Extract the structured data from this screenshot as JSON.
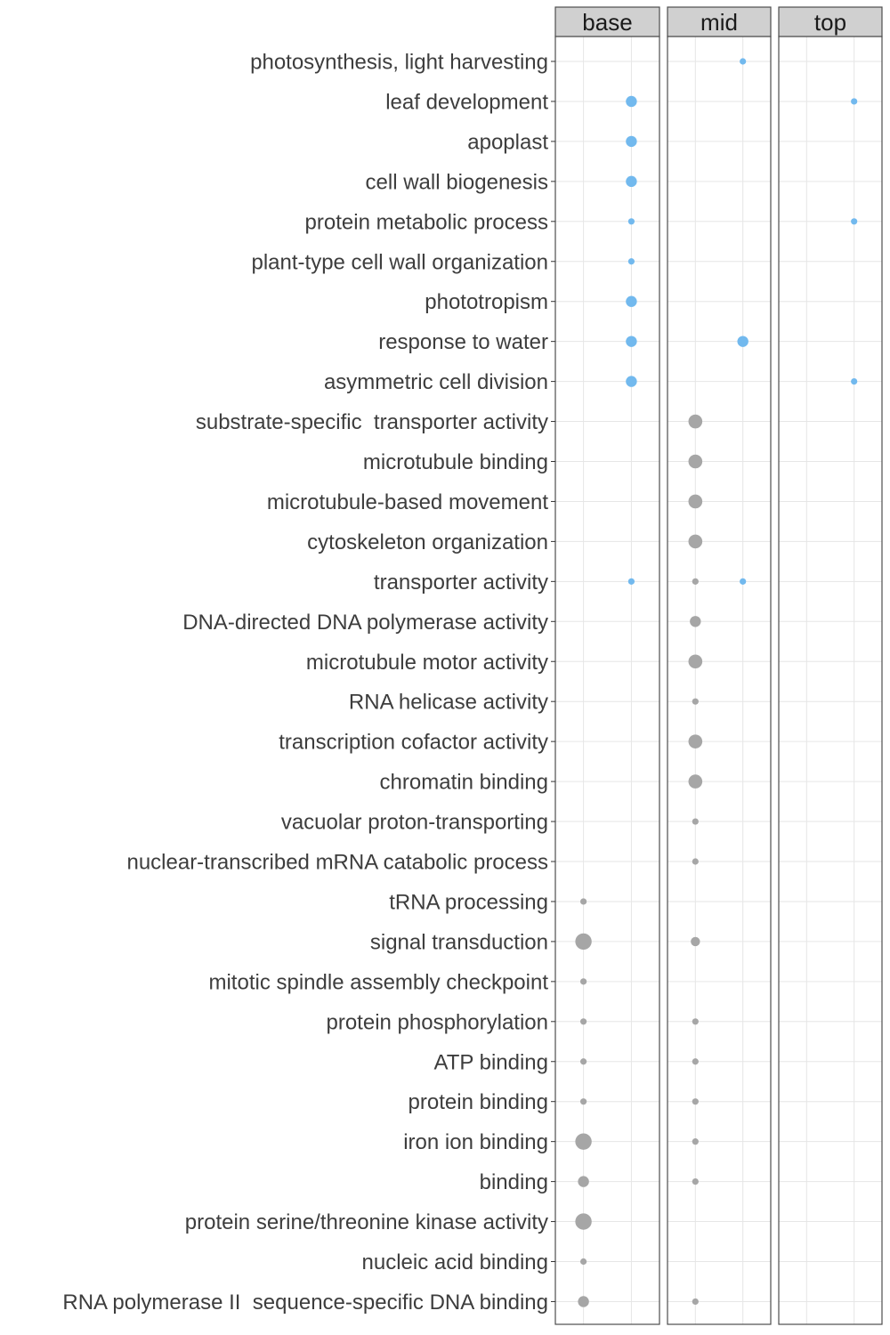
{
  "chart_data": {
    "type": "scatter",
    "title": "",
    "xlabel": "",
    "ylabel": "",
    "facets": [
      "base",
      "mid",
      "top"
    ],
    "x_groups": [
      "A",
      "B"
    ],
    "grid": true,
    "legend": "none",
    "colors": {
      "A": "#a6a6a6",
      "B": "#72b9ee"
    },
    "size_scale": {
      "min": 1,
      "max": 5
    },
    "categories": [
      "photosynthesis, light harvesting",
      "leaf development",
      "apoplast",
      "cell wall biogenesis",
      "protein metabolic process",
      "plant-type cell wall organization",
      "phototropism",
      "response to water",
      "asymmetric cell division",
      "substrate-specific  transporter activity",
      "microtubule binding",
      "microtubule-based movement",
      "cytoskeleton organization",
      "transporter activity",
      "DNA-directed DNA polymerase activity",
      "microtubule motor activity",
      "RNA helicase activity",
      "transcription cofactor activity",
      "chromatin binding",
      "vacuolar proton-transporting",
      "nuclear-transcribed mRNA catabolic process",
      "tRNA processing",
      "signal transduction",
      "mitotic spindle assembly checkpoint",
      "protein phosphorylation",
      "ATP binding",
      "protein binding",
      "iron ion binding",
      "binding",
      "protein serine/threonine kinase activity",
      "nucleic acid binding",
      "RNA polymerase II  sequence-specific DNA binding"
    ],
    "points": [
      {
        "category": "photosynthesis, light harvesting",
        "facet": "mid",
        "group": "B",
        "size": 1
      },
      {
        "category": "leaf development",
        "facet": "base",
        "group": "B",
        "size": 3
      },
      {
        "category": "leaf development",
        "facet": "top",
        "group": "B",
        "size": 1
      },
      {
        "category": "apoplast",
        "facet": "base",
        "group": "B",
        "size": 3
      },
      {
        "category": "cell wall biogenesis",
        "facet": "base",
        "group": "B",
        "size": 3
      },
      {
        "category": "protein metabolic process",
        "facet": "base",
        "group": "B",
        "size": 1
      },
      {
        "category": "protein metabolic process",
        "facet": "top",
        "group": "B",
        "size": 1
      },
      {
        "category": "plant-type cell wall organization",
        "facet": "base",
        "group": "B",
        "size": 1
      },
      {
        "category": "phototropism",
        "facet": "base",
        "group": "B",
        "size": 3
      },
      {
        "category": "response to water",
        "facet": "base",
        "group": "B",
        "size": 3
      },
      {
        "category": "response to water",
        "facet": "mid",
        "group": "B",
        "size": 3
      },
      {
        "category": "asymmetric cell division",
        "facet": "base",
        "group": "B",
        "size": 3
      },
      {
        "category": "asymmetric cell division",
        "facet": "top",
        "group": "B",
        "size": 1
      },
      {
        "category": "substrate-specific  transporter activity",
        "facet": "mid",
        "group": "A",
        "size": 4
      },
      {
        "category": "microtubule binding",
        "facet": "mid",
        "group": "A",
        "size": 4
      },
      {
        "category": "microtubule-based movement",
        "facet": "mid",
        "group": "A",
        "size": 4
      },
      {
        "category": "cytoskeleton organization",
        "facet": "mid",
        "group": "A",
        "size": 4
      },
      {
        "category": "transporter activity",
        "facet": "base",
        "group": "B",
        "size": 1
      },
      {
        "category": "transporter activity",
        "facet": "mid",
        "group": "A",
        "size": 1
      },
      {
        "category": "transporter activity",
        "facet": "mid",
        "group": "B",
        "size": 1
      },
      {
        "category": "DNA-directed DNA polymerase activity",
        "facet": "mid",
        "group": "A",
        "size": 3
      },
      {
        "category": "microtubule motor activity",
        "facet": "mid",
        "group": "A",
        "size": 4
      },
      {
        "category": "RNA helicase activity",
        "facet": "mid",
        "group": "A",
        "size": 1
      },
      {
        "category": "transcription cofactor activity",
        "facet": "mid",
        "group": "A",
        "size": 4
      },
      {
        "category": "chromatin binding",
        "facet": "mid",
        "group": "A",
        "size": 4
      },
      {
        "category": "vacuolar proton-transporting",
        "facet": "mid",
        "group": "A",
        "size": 1
      },
      {
        "category": "nuclear-transcribed mRNA catabolic process",
        "facet": "mid",
        "group": "A",
        "size": 1
      },
      {
        "category": "tRNA processing",
        "facet": "base",
        "group": "A",
        "size": 1
      },
      {
        "category": "signal transduction",
        "facet": "base",
        "group": "A",
        "size": 5
      },
      {
        "category": "signal transduction",
        "facet": "mid",
        "group": "A",
        "size": 2
      },
      {
        "category": "mitotic spindle assembly checkpoint",
        "facet": "base",
        "group": "A",
        "size": 1
      },
      {
        "category": "protein phosphorylation",
        "facet": "base",
        "group": "A",
        "size": 1
      },
      {
        "category": "protein phosphorylation",
        "facet": "mid",
        "group": "A",
        "size": 1
      },
      {
        "category": "ATP binding",
        "facet": "base",
        "group": "A",
        "size": 1
      },
      {
        "category": "ATP binding",
        "facet": "mid",
        "group": "A",
        "size": 1
      },
      {
        "category": "protein binding",
        "facet": "base",
        "group": "A",
        "size": 1
      },
      {
        "category": "protein binding",
        "facet": "mid",
        "group": "A",
        "size": 1
      },
      {
        "category": "iron ion binding",
        "facet": "base",
        "group": "A",
        "size": 5
      },
      {
        "category": "iron ion binding",
        "facet": "mid",
        "group": "A",
        "size": 1
      },
      {
        "category": "binding",
        "facet": "base",
        "group": "A",
        "size": 3
      },
      {
        "category": "binding",
        "facet": "mid",
        "group": "A",
        "size": 1
      },
      {
        "category": "protein serine/threonine kinase activity",
        "facet": "base",
        "group": "A",
        "size": 5
      },
      {
        "category": "nucleic acid binding",
        "facet": "base",
        "group": "A",
        "size": 1
      },
      {
        "category": "RNA polymerase II  sequence-specific DNA binding",
        "facet": "base",
        "group": "A",
        "size": 3
      },
      {
        "category": "RNA polymerase II  sequence-specific DNA binding",
        "facet": "mid",
        "group": "A",
        "size": 1
      }
    ]
  }
}
